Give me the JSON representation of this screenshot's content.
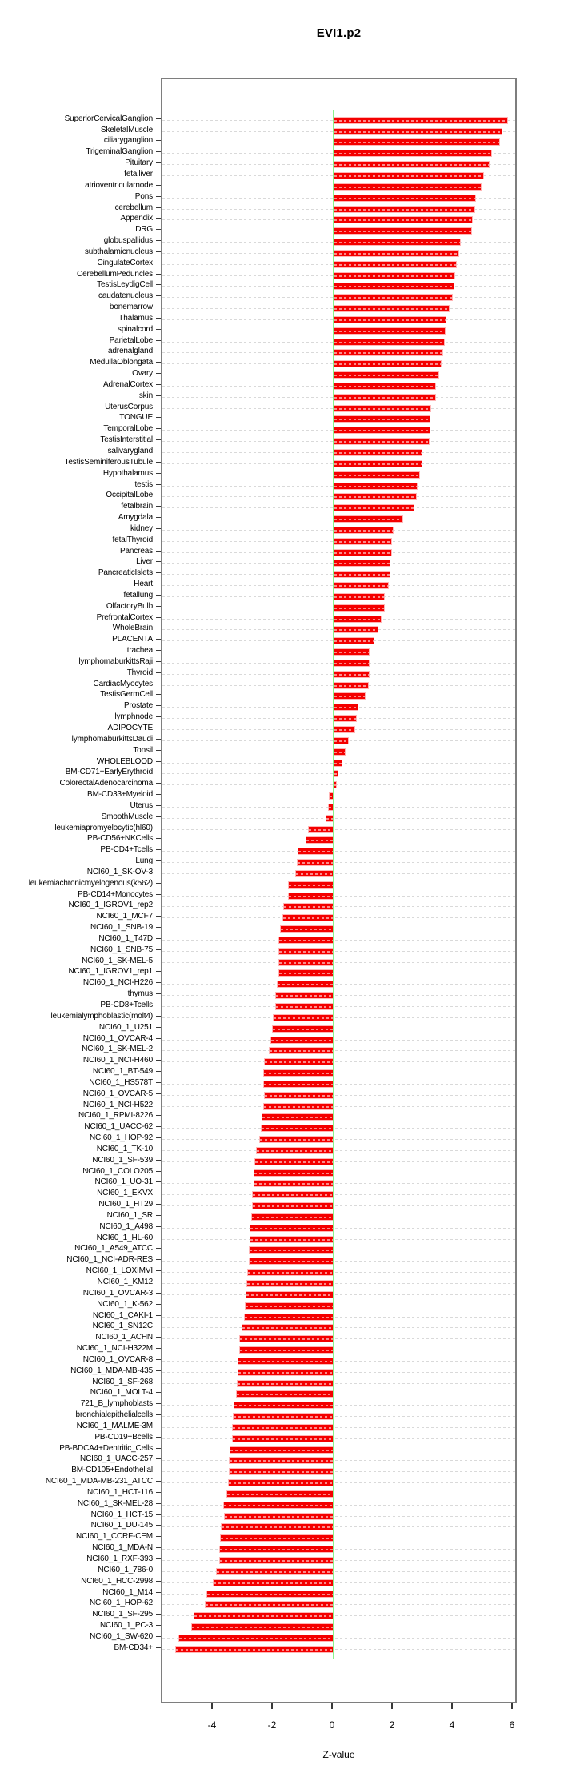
{
  "title": "EVI1.p2",
  "colors": {
    "bar": "#f40000",
    "bar_edge": "#ffb5b5",
    "zero_line": "#8af28a",
    "gridline": "#d9d9d9",
    "box_border": "#7e7e7e",
    "background": "#ffffff"
  },
  "chart_data": {
    "type": "bar",
    "orientation": "horizontal",
    "title": "EVI1.p2",
    "xlabel": "Z-value",
    "ylabel": "",
    "x_ticks": [
      -4,
      -2,
      0,
      2,
      4,
      6
    ],
    "xlim": [
      -5.71,
      6.16
    ],
    "grid": "dashed horizontal line per category",
    "legend": "none",
    "categories": [
      "SuperiorCervicalGanglion",
      "SkeletalMuscle",
      "ciliaryganglion",
      "TrigeminalGanglion",
      "Pituitary",
      "fetalliver",
      "atrioventricularnode",
      "Pons",
      "cerebellum",
      "Appendix",
      "DRG",
      "globuspallidus",
      "subthalamicnucleus",
      "CingulateCortex",
      "CerebellumPeduncles",
      "TestisLeydigCell",
      "caudatenucleus",
      "bonemarrow",
      "Thalamus",
      "spinalcord",
      "ParietalLobe",
      "adrenalgland",
      "MedullaOblongata",
      "Ovary",
      "AdrenalCortex",
      "skin",
      "UterusCorpus",
      "TONGUE",
      "TemporalLobe",
      "TestisInterstitial",
      "salivarygland",
      "TestisSeminiferousTubule",
      "Hypothalamus",
      "testis",
      "OccipitalLobe",
      "fetalbrain",
      "Amygdala",
      "kidney",
      "fetalThyroid",
      "Pancreas",
      "Liver",
      "PancreaticIslets",
      "Heart",
      "fetallung",
      "OlfactoryBulb",
      "PrefrontalCortex",
      "WholeBrain",
      "PLACENTA",
      "trachea",
      "lymphomaburkittsRaji",
      "Thyroid",
      "CardiacMyocytes",
      "TestisGermCell",
      "Prostate",
      "lymphnode",
      "ADIPOCYTE",
      "lymphomaburkittsDaudi",
      "Tonsil",
      "WHOLEBLOOD",
      "BM-CD71+EarlyErythroid",
      "ColorectalAdenocarcinoma",
      "BM-CD33+Myeloid",
      "Uterus",
      "SmoothMuscle",
      "leukemiapromyelocytic(hl60)",
      "PB-CD56+NKCells",
      "PB-CD4+Tcells",
      "Lung",
      "NCI60_1_SK-OV-3",
      "leukemiachronicmyelogenous(k562)",
      "PB-CD14+Monocytes",
      "NCI60_1_IGROV1_rep2",
      "NCI60_1_MCF7",
      "NCI60_1_SNB-19",
      "NCI60_1_T47D",
      "NCI60_1_SNB-75",
      "NCI60_1_SK-MEL-5",
      "NCI60_1_IGROV1_rep1",
      "NCI60_1_NCI-H226",
      "thymus",
      "PB-CD8+Tcells",
      "leukemialymphoblastic(molt4)",
      "NCI60_1_U251",
      "NCI60_1_OVCAR-4",
      "NCI60_1_SK-MEL-2",
      "NCI60_1_NCI-H460",
      "NCI60_1_BT-549",
      "NCI60_1_HS578T",
      "NCI60_1_OVCAR-5",
      "NCI60_1_NCI-H522",
      "NCI60_1_RPMI-8226",
      "NCI60_1_UACC-62",
      "NCI60_1_HOP-92",
      "NCI60_1_TK-10",
      "NCI60_1_SF-539",
      "NCI60_1_COLO205",
      "NCI60_1_UO-31",
      "NCI60_1_EKVX",
      "NCI60_1_HT29",
      "NCI60_1_SR",
      "NCI60_1_A498",
      "NCI60_1_HL-60",
      "NCI60_1_A549_ATCC",
      "NCI60_1_NCI-ADR-RES",
      "NCI60_1_LOXIMVI",
      "NCI60_1_KM12",
      "NCI60_1_OVCAR-3",
      "NCI60_1_K-562",
      "NCI60_1_CAKI-1",
      "NCI60_1_SN12C",
      "NCI60_1_ACHN",
      "NCI60_1_NCI-H322M",
      "NCI60_1_OVCAR-8",
      "NCI60_1_MDA-MB-435",
      "NCI60_1_SF-268",
      "NCI60_1_MOLT-4",
      "721_B_lymphoblasts",
      "bronchialepithelialcells",
      "NCI60_1_MALME-3M",
      "PB-CD19+Bcells",
      "PB-BDCA4+Dentritic_Cells",
      "NCI60_1_UACC-257",
      "BM-CD105+Endothelial",
      "NCI60_1_MDA-MB-231_ATCC",
      "NCI60_1_HCT-116",
      "NCI60_1_SK-MEL-28",
      "NCI60_1_HCT-15",
      "NCI60_1_DU-145",
      "NCI60_1_CCRF-CEM",
      "NCI60_1_MDA-N",
      "NCI60_1_RXF-393",
      "NCI60_1_786-0",
      "NCI60_1_HCC-2998",
      "NCI60_1_M14",
      "NCI60_1_HOP-62",
      "NCI60_1_SF-295",
      "NCI60_1_PC-3",
      "NCI60_1_SW-620",
      "BM-CD34+"
    ],
    "values": [
      5.8,
      5.62,
      5.55,
      5.28,
      5.2,
      5.0,
      4.93,
      4.75,
      4.73,
      4.63,
      4.6,
      4.24,
      4.18,
      4.11,
      4.05,
      4.03,
      3.98,
      3.86,
      3.76,
      3.73,
      3.71,
      3.64,
      3.59,
      3.53,
      3.4,
      3.4,
      3.26,
      3.23,
      3.22,
      3.2,
      2.95,
      2.95,
      2.87,
      2.79,
      2.77,
      2.7,
      2.32,
      2.0,
      1.94,
      1.94,
      1.88,
      1.88,
      1.85,
      1.7,
      1.7,
      1.6,
      1.48,
      1.36,
      1.21,
      1.21,
      1.19,
      1.16,
      1.07,
      0.83,
      0.76,
      0.73,
      0.5,
      0.39,
      0.28,
      0.16,
      0.1,
      -0.16,
      -0.19,
      -0.27,
      -0.86,
      -0.94,
      -1.2,
      -1.22,
      -1.28,
      -1.53,
      -1.52,
      -1.67,
      -1.7,
      -1.79,
      -1.84,
      -1.84,
      -1.85,
      -1.84,
      -1.89,
      -1.95,
      -1.96,
      -2.03,
      -2.06,
      -2.1,
      -2.17,
      -2.32,
      -2.34,
      -2.35,
      -2.33,
      -2.36,
      -2.4,
      -2.42,
      -2.47,
      -2.6,
      -2.64,
      -2.66,
      -2.68,
      -2.72,
      -2.73,
      -2.76,
      -2.8,
      -2.81,
      -2.84,
      -2.84,
      -2.87,
      -2.91,
      -2.93,
      -2.95,
      -2.98,
      -3.06,
      -3.14,
      -3.16,
      -3.2,
      -3.21,
      -3.22,
      -3.25,
      -3.33,
      -3.35,
      -3.38,
      -3.4,
      -3.47,
      -3.5,
      -3.5,
      -3.53,
      -3.58,
      -3.67,
      -3.66,
      -3.75,
      -3.8,
      -3.82,
      -3.82,
      -3.91,
      -4.04,
      -4.24,
      -4.3,
      -4.68,
      -4.75,
      -5.17,
      -5.28
    ]
  }
}
